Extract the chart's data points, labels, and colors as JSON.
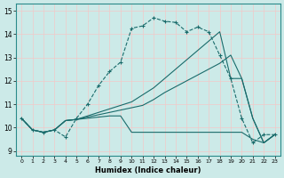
{
  "xlabel": "Humidex (Indice chaleur)",
  "bg_color": "#cceae8",
  "grid_color": "#f2c8c8",
  "line_color": "#1a6b6b",
  "xlim": [
    -0.5,
    23.5
  ],
  "ylim": [
    8.8,
    15.3
  ],
  "xticks": [
    0,
    1,
    2,
    3,
    4,
    5,
    6,
    7,
    8,
    9,
    10,
    11,
    12,
    13,
    14,
    15,
    16,
    17,
    18,
    19,
    20,
    21,
    22,
    23
  ],
  "yticks": [
    9,
    10,
    11,
    12,
    13,
    14,
    15
  ],
  "line1_x": [
    0,
    1,
    2,
    3,
    4,
    5,
    6,
    7,
    8,
    9,
    10,
    11,
    12,
    13,
    14,
    15,
    16,
    17,
    18,
    19,
    20,
    21,
    22,
    23
  ],
  "line1_y": [
    10.4,
    9.9,
    9.8,
    9.9,
    9.6,
    10.4,
    11.0,
    11.8,
    12.4,
    12.8,
    14.25,
    14.35,
    14.7,
    14.55,
    14.5,
    14.1,
    14.3,
    14.1,
    13.1,
    12.1,
    10.4,
    9.35,
    9.7,
    9.7
  ],
  "line2_x": [
    0,
    1,
    2,
    3,
    4,
    5,
    6,
    7,
    8,
    9,
    10,
    11,
    12,
    13,
    14,
    15,
    16,
    17,
    18,
    19,
    20,
    21,
    22,
    23
  ],
  "line2_y": [
    10.4,
    9.9,
    9.8,
    9.9,
    10.3,
    10.35,
    10.45,
    10.55,
    10.65,
    10.75,
    10.85,
    10.95,
    11.2,
    11.5,
    11.75,
    12.0,
    12.25,
    12.5,
    12.75,
    13.1,
    12.1,
    10.4,
    9.35,
    9.7
  ],
  "line3_x": [
    0,
    1,
    2,
    3,
    4,
    5,
    6,
    7,
    8,
    9,
    10,
    11,
    12,
    13,
    14,
    15,
    16,
    17,
    18,
    19,
    20,
    21,
    22,
    23
  ],
  "line3_y": [
    10.4,
    9.9,
    9.8,
    9.9,
    10.3,
    10.35,
    10.4,
    10.45,
    10.5,
    10.5,
    9.8,
    9.8,
    9.8,
    9.8,
    9.8,
    9.8,
    9.8,
    9.8,
    9.8,
    9.8,
    9.8,
    9.5,
    9.35,
    9.7
  ],
  "line4_x": [
    0,
    1,
    2,
    3,
    4,
    5,
    6,
    7,
    8,
    9,
    10,
    11,
    12,
    13,
    14,
    15,
    16,
    17,
    18,
    19,
    20,
    21,
    22,
    23
  ],
  "line4_y": [
    10.4,
    9.9,
    9.8,
    9.9,
    10.3,
    10.35,
    10.5,
    10.65,
    10.8,
    10.95,
    11.1,
    11.4,
    11.7,
    12.1,
    12.5,
    12.9,
    13.3,
    13.7,
    14.1,
    12.1,
    12.1,
    10.4,
    9.35,
    9.7
  ]
}
